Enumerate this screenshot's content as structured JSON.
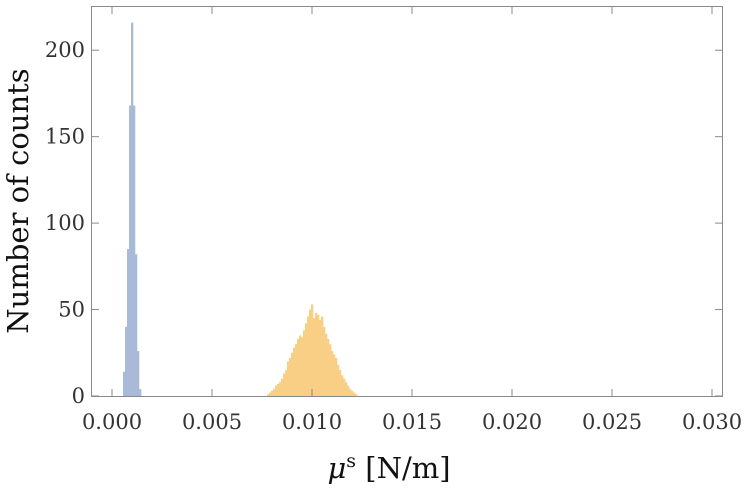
{
  "chart_data": {
    "type": "histogram",
    "xlabel_symbol": "μ",
    "xlabel_superscript": "s",
    "xlabel_unit": " [N/m]",
    "ylabel": "Number of counts",
    "xlim": [
      -0.001,
      0.0305
    ],
    "ylim": [
      0,
      225
    ],
    "x_ticks": [
      0.0,
      0.005,
      0.01,
      0.015,
      0.02,
      0.025,
      0.03
    ],
    "x_tick_labels": [
      "0.000",
      "0.005",
      "0.010",
      "0.015",
      "0.020",
      "0.025",
      "0.030"
    ],
    "y_ticks": [
      0,
      50,
      100,
      150,
      200
    ],
    "y_tick_labels": [
      "0",
      "50",
      "100",
      "150",
      "200"
    ],
    "grid": false,
    "series": [
      {
        "color": "#a9bad8",
        "bin_width": 0.0001,
        "x": [
          0.0006,
          0.0007,
          0.0008,
          0.0009,
          0.001,
          0.0011,
          0.0012,
          0.0013,
          0.0014
        ],
        "values": [
          14,
          40,
          85,
          168,
          216,
          168,
          82,
          26,
          4
        ]
      },
      {
        "color": "#f9cf86",
        "bin_width": 0.0001,
        "x": [
          0.0078,
          0.0079,
          0.008,
          0.0081,
          0.0082,
          0.0083,
          0.0084,
          0.0085,
          0.0086,
          0.0087,
          0.0088,
          0.0089,
          0.009,
          0.0091,
          0.0092,
          0.0093,
          0.0094,
          0.0095,
          0.0096,
          0.0097,
          0.0098,
          0.0099,
          0.01,
          0.0101,
          0.0102,
          0.0103,
          0.0104,
          0.0105,
          0.0106,
          0.0107,
          0.0108,
          0.0109,
          0.011,
          0.0111,
          0.0112,
          0.0113,
          0.0114,
          0.0115,
          0.0116,
          0.0117,
          0.0118,
          0.0119,
          0.012,
          0.0121,
          0.0122
        ],
        "values": [
          1,
          2,
          3,
          4,
          6,
          7,
          8,
          10,
          13,
          15,
          20,
          22,
          25,
          28,
          30,
          33,
          35,
          34,
          38,
          42,
          46,
          50,
          53,
          45,
          48,
          47,
          44,
          46,
          40,
          36,
          33,
          30,
          26,
          24,
          22,
          18,
          15,
          12,
          10,
          8,
          6,
          4,
          3,
          2,
          1
        ]
      }
    ]
  }
}
